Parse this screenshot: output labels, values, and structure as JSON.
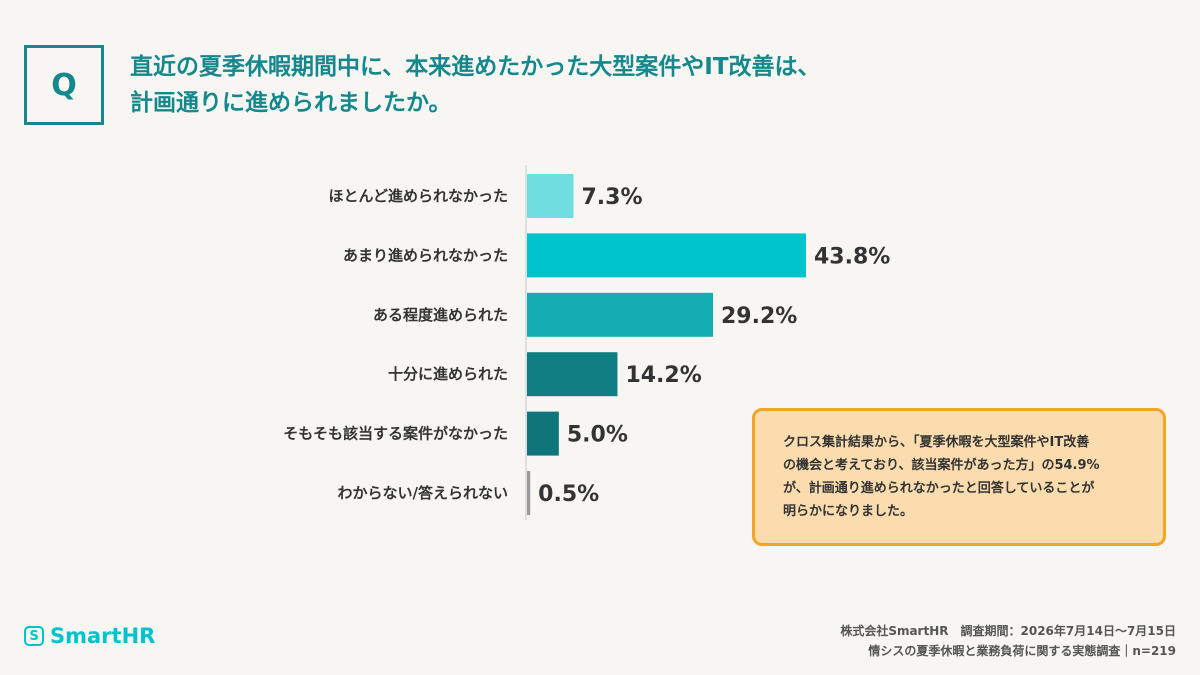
{
  "question": {
    "badge": "Q",
    "line1": "直近の夏季休暇期間中に、本来進めたかった大型案件やIT改善は、",
    "line2": "計画通りに進められましたか。"
  },
  "chart_data": {
    "type": "bar",
    "orientation": "horizontal",
    "categories": [
      "ほとんど進められなかった",
      "あまり進められなかった",
      "ある程度進められた",
      "十分に進められた",
      "そもそも該当する案件がなかった",
      "わからない/答えられない"
    ],
    "values": [
      7.3,
      43.8,
      29.2,
      14.2,
      5.0,
      0.5
    ],
    "value_labels": [
      "7.3%",
      "43.8%",
      "29.2%",
      "14.2%",
      "5.0%",
      "0.5%"
    ],
    "colors": [
      "#6fdde0",
      "#00c4cc",
      "#14adb2",
      "#107f83",
      "#10757a",
      "#999999"
    ],
    "xlim": [
      0,
      44
    ],
    "grid": false,
    "legend": "none"
  },
  "note": {
    "lines": [
      "クロス集計結果から、「夏季休暇を大型案件やIT改善",
      "の機会と考えており、該当案件があった方」の54.9%",
      "が、計画通り進められなかったと回答していることが",
      "明らかになりました。"
    ]
  },
  "logo": {
    "mark": "S",
    "text": "SmartHR"
  },
  "footer": {
    "line1": "株式会社SmartHR　調査期間：2026年7月14日〜7月15日",
    "line2": "情シスの夏季休暇と業務負荷に関する実態調査｜n=219"
  }
}
